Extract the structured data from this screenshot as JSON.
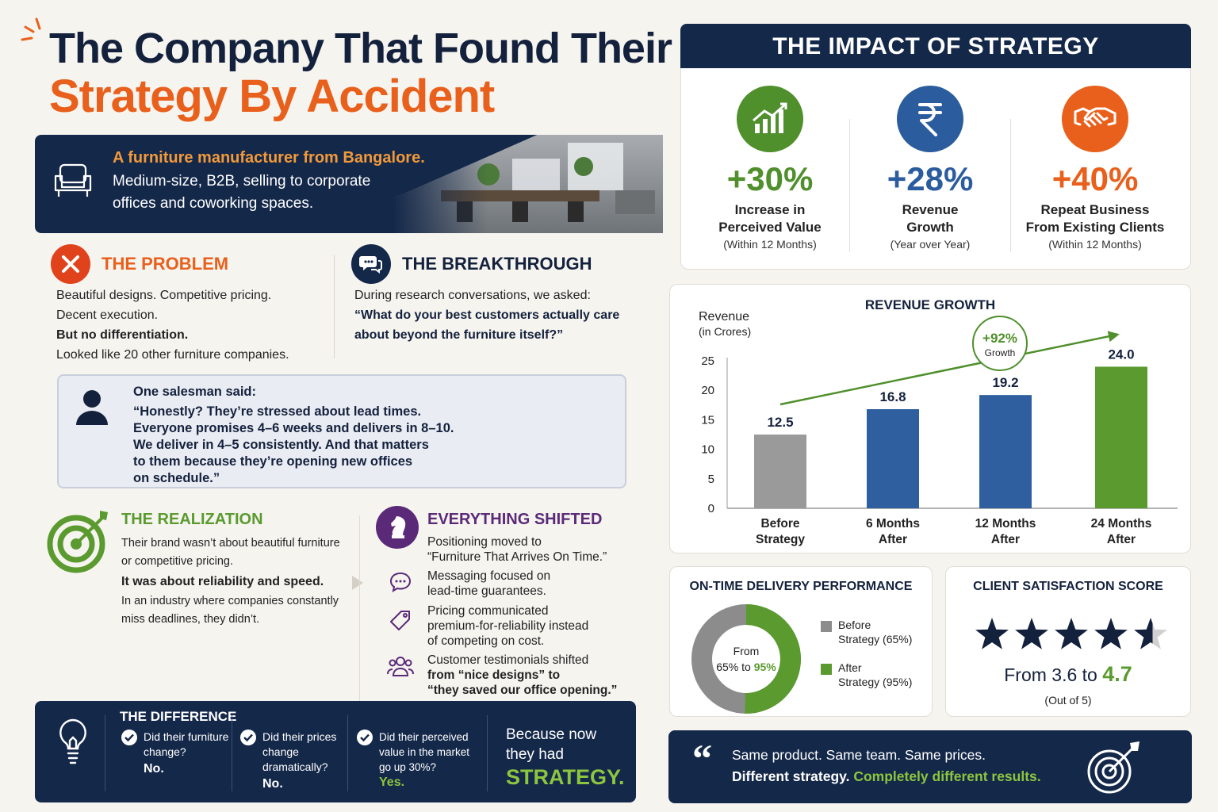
{
  "header": {
    "title_line1": "The Company That Found Their",
    "title_line2": "Strategy By Accident"
  },
  "intro": {
    "headline": "A furniture manufacturer from Bangalore.",
    "body": "Medium-size, B2B, selling to corporate offices and coworking spaces.",
    "icon": "armchair-icon"
  },
  "problem": {
    "title": "THE PROBLEM",
    "line1": "Beautiful designs. Competitive pricing.",
    "line2": "Decent execution.",
    "line3": "But no differentiation.",
    "line4": "Looked like 20 other furniture companies."
  },
  "breakthrough": {
    "title": "THE BREAKTHROUGH",
    "line1": "During research conversations, we asked:",
    "question": "“What do your best customers actually care about beyond the furniture itself?”"
  },
  "salesman": {
    "intro": "One salesman said:",
    "l1": "“Honestly? They’re stressed about lead times.",
    "l2": "Everyone promises 4–6 weeks and delivers in 8–10.",
    "l3": "We deliver in 4–5 consistently. And that matters",
    "l4": "to them because they’re opening new offices",
    "l5": "on schedule.”"
  },
  "realization": {
    "title": "THE REALIZATION",
    "line1": "Their brand wasn’t about beautiful furniture or competitive pricing.",
    "line2": "It was about reliability and speed.",
    "line3": "In an industry where companies constantly miss deadlines, they didn’t."
  },
  "shifted": {
    "title": "EVERYTHING SHIFTED",
    "items": [
      {
        "a": "Positioning moved to",
        "b": "“Furniture That Arrives On Time.”",
        "icon": "chat-bubble-icon"
      },
      {
        "a": "Messaging focused on",
        "b": "lead-time guarantees.",
        "icon": "price-tag-icon"
      },
      {
        "a": "Pricing communicated",
        "b": "premium-for-reliability instead",
        "c": "of competing on cost.",
        "icon": "price-tag-icon"
      },
      {
        "a": "Customer testimonials shifted",
        "b": "from “nice designs” to",
        "c": "“they saved our office opening.”",
        "icon": "people-icon"
      }
    ]
  },
  "difference": {
    "title": "THE DIFFERENCE",
    "q1": "Did their furniture change?",
    "a1": "No.",
    "q2": "Did their prices change dramatically?",
    "a2": "No.",
    "q3": "Did their perceived value in the market go up 30%?",
    "a3": "Yes.",
    "conclusion1": "Because now",
    "conclusion2": "they had",
    "conclusion3": "STRATEGY."
  },
  "impact": {
    "title": "THE IMPACT OF STRATEGY",
    "kpis": [
      {
        "value": "+30%",
        "label1": "Increase in",
        "label2": "Perceived Value",
        "sub": "(Within 12 Months)",
        "color": "#4f8f2c",
        "icon": "growth-chart-icon"
      },
      {
        "value": "+28%",
        "label1": "Revenue",
        "label2": "Growth",
        "sub": "(Year over Year)",
        "color": "#2b5d9e",
        "icon": "rupee-icon"
      },
      {
        "value": "+40%",
        "label1": "Repeat Business",
        "label2": "From Existing Clients",
        "sub": "(Within 12 Months)",
        "color": "#e8601c",
        "icon": "handshake-icon"
      }
    ]
  },
  "chart_data": {
    "type": "bar",
    "title": "REVENUE GROWTH",
    "ylabel": "Revenue",
    "ylabel_sub": "(in Crores)",
    "categories": [
      [
        "Before",
        "Strategy"
      ],
      [
        "6 Months",
        "After"
      ],
      [
        "12 Months",
        "After"
      ],
      [
        "24 Months",
        "After"
      ]
    ],
    "values": [
      12.5,
      16.8,
      19.2,
      24.0
    ],
    "value_labels": [
      "12.5",
      "16.8",
      "19.2",
      "24.0"
    ],
    "colors": [
      "#9a9a9a",
      "#2f5f9f",
      "#2f5f9f",
      "#5a9a2f"
    ],
    "yticks": [
      0,
      5,
      10,
      15,
      20,
      25
    ],
    "ylim": [
      0,
      25
    ],
    "annotation": {
      "value": "+92%",
      "label": "Growth"
    }
  },
  "on_time": {
    "title": "ON-TIME DELIVERY PERFORMANCE",
    "center1": "From",
    "center2a": "65% to ",
    "center2b": "95%",
    "before_value": 65,
    "after_value": 95,
    "legend_before1": "Before",
    "legend_before2": "Strategy (65%)",
    "legend_after1": "After",
    "legend_after2": "Strategy (95%)",
    "before_color": "#8c8c8c",
    "after_color": "#5a9a2f"
  },
  "satisfaction": {
    "title": "CLIENT SATISFACTION SCORE",
    "rating": 4.7,
    "max": 5,
    "text_a": "From 3.6 to ",
    "text_b": "4.7",
    "sub": "(Out of 5)"
  },
  "footer": {
    "line1": "Same product. Same team. Same prices.",
    "line2a": "Different strategy. ",
    "line2b": "Completely different results."
  }
}
